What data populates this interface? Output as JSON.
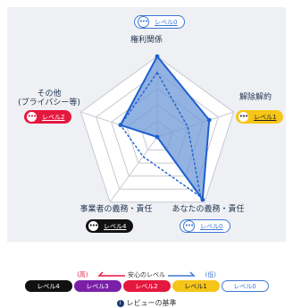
{
  "chart_data": {
    "type": "radar",
    "axes": [
      "権利関係",
      "解除解約",
      "あなたの義務・責任",
      "事業者の義務・責任",
      "その他\n(プライバシー等)"
    ],
    "axis_max": 5,
    "grid_levels": 5,
    "series": [
      {
        "values": [
          5,
          3.4,
          4.8,
          0,
          2.4
        ]
      },
      {
        "values": [
          4,
          2,
          4.6,
          1.5,
          2.4
        ]
      }
    ],
    "colors": {
      "fill": "#6e98d8",
      "line": "#1f5fcf",
      "grid": "#c5c9d0"
    }
  },
  "badges": [
    {
      "label": "レベル0",
      "level": "lv0"
    },
    {
      "label": "レベル1",
      "level": "lv1"
    },
    {
      "label": "レベル0",
      "level": "lv0"
    },
    {
      "label": "レベル4",
      "level": "lv4"
    },
    {
      "label": "レベル2",
      "level": "lv2"
    }
  ],
  "legend": {
    "high": "(高)",
    "caption": "安心のレベル",
    "low": "(低)",
    "levels": [
      {
        "label": "レベル4",
        "color": "#111111",
        "text_color": "#ffffff"
      },
      {
        "label": "レベル3",
        "color": "#7b1fa8",
        "text_color": "#ffffff"
      },
      {
        "label": "レベル2",
        "color": "#e5173f",
        "text_color": "#ffffff"
      },
      {
        "label": "レベル1",
        "color": "#f5c518",
        "text_color": "#222222"
      },
      {
        "label": "レベル0",
        "color": "#ffffff",
        "text_color": "#3d78d6"
      }
    ]
  },
  "review_link": "レビューの基準"
}
